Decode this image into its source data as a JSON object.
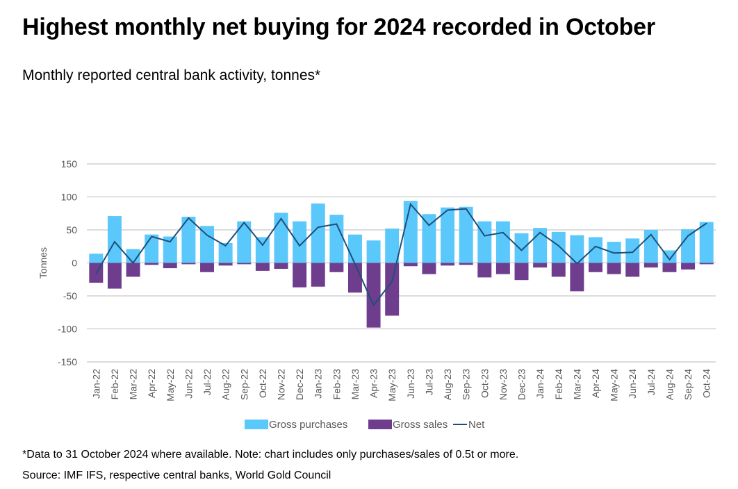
{
  "title": "Highest monthly net buying for 2024 recorded in October",
  "subtitle": "Monthly reported central bank activity, tonnes*",
  "note": "*Data to 31 October 2024 where available. Note: chart includes only purchases/sales of 0.5t or more.",
  "source": "Source: IMF IFS, respective central banks, World Gold Council",
  "colors": {
    "gross_purchases": "#5bc8fb",
    "gross_sales": "#6f3d8e",
    "net": "#1f4e79",
    "grid": "#b9b9b9",
    "axis_text": "#595959"
  },
  "chart_data": {
    "type": "bar",
    "ylabel": "Tonnes",
    "xlabel": "",
    "ylim": [
      -150,
      150
    ],
    "yticks": [
      150,
      100,
      50,
      0,
      -50,
      -100,
      -150
    ],
    "grid": true,
    "legend_position": "bottom",
    "categories": [
      "Jan-22",
      "Feb-22",
      "Mar-22",
      "Apr-22",
      "May-22",
      "Jun-22",
      "Jul-22",
      "Aug-22",
      "Sep-22",
      "Oct-22",
      "Nov-22",
      "Dec-22",
      "Jan-23",
      "Feb-23",
      "Mar-23",
      "Apr-23",
      "May-23",
      "Jun-23",
      "Jul-23",
      "Aug-23",
      "Sep-23",
      "Oct-23",
      "Nov-23",
      "Dec-23",
      "Jan-24",
      "Feb-24",
      "Mar-24",
      "Apr-24",
      "May-24",
      "Jun-24",
      "Jul-24",
      "Aug-24",
      "Sep-24",
      "Oct-24"
    ],
    "series": [
      {
        "name": "Gross purchases",
        "kind": "bar",
        "values": [
          14,
          71,
          21,
          43,
          40,
          70,
          56,
          30,
          63,
          39,
          76,
          63,
          90,
          73,
          43,
          34,
          52,
          94,
          74,
          84,
          85,
          63,
          63,
          45,
          53,
          47,
          42,
          39,
          32,
          37,
          50,
          19,
          51,
          62
        ]
      },
      {
        "name": "Gross sales",
        "kind": "bar",
        "values": [
          -30,
          -39,
          -21,
          -3,
          -8,
          -2,
          -14,
          -4,
          -2,
          -12,
          -9,
          -37,
          -36,
          -14,
          -45,
          -98,
          -80,
          -5,
          -17,
          -4,
          -3,
          -22,
          -17,
          -26,
          -7,
          -21,
          -43,
          -14,
          -17,
          -21,
          -7,
          -14,
          -10,
          -2
        ]
      },
      {
        "name": "Net",
        "kind": "line",
        "values": [
          -16,
          32,
          0,
          40,
          32,
          68,
          42,
          26,
          61,
          27,
          67,
          26,
          54,
          59,
          -2,
          -64,
          -28,
          89,
          57,
          80,
          82,
          41,
          46,
          19,
          46,
          26,
          -1,
          25,
          15,
          16,
          43,
          5,
          41,
          60
        ]
      }
    ]
  }
}
